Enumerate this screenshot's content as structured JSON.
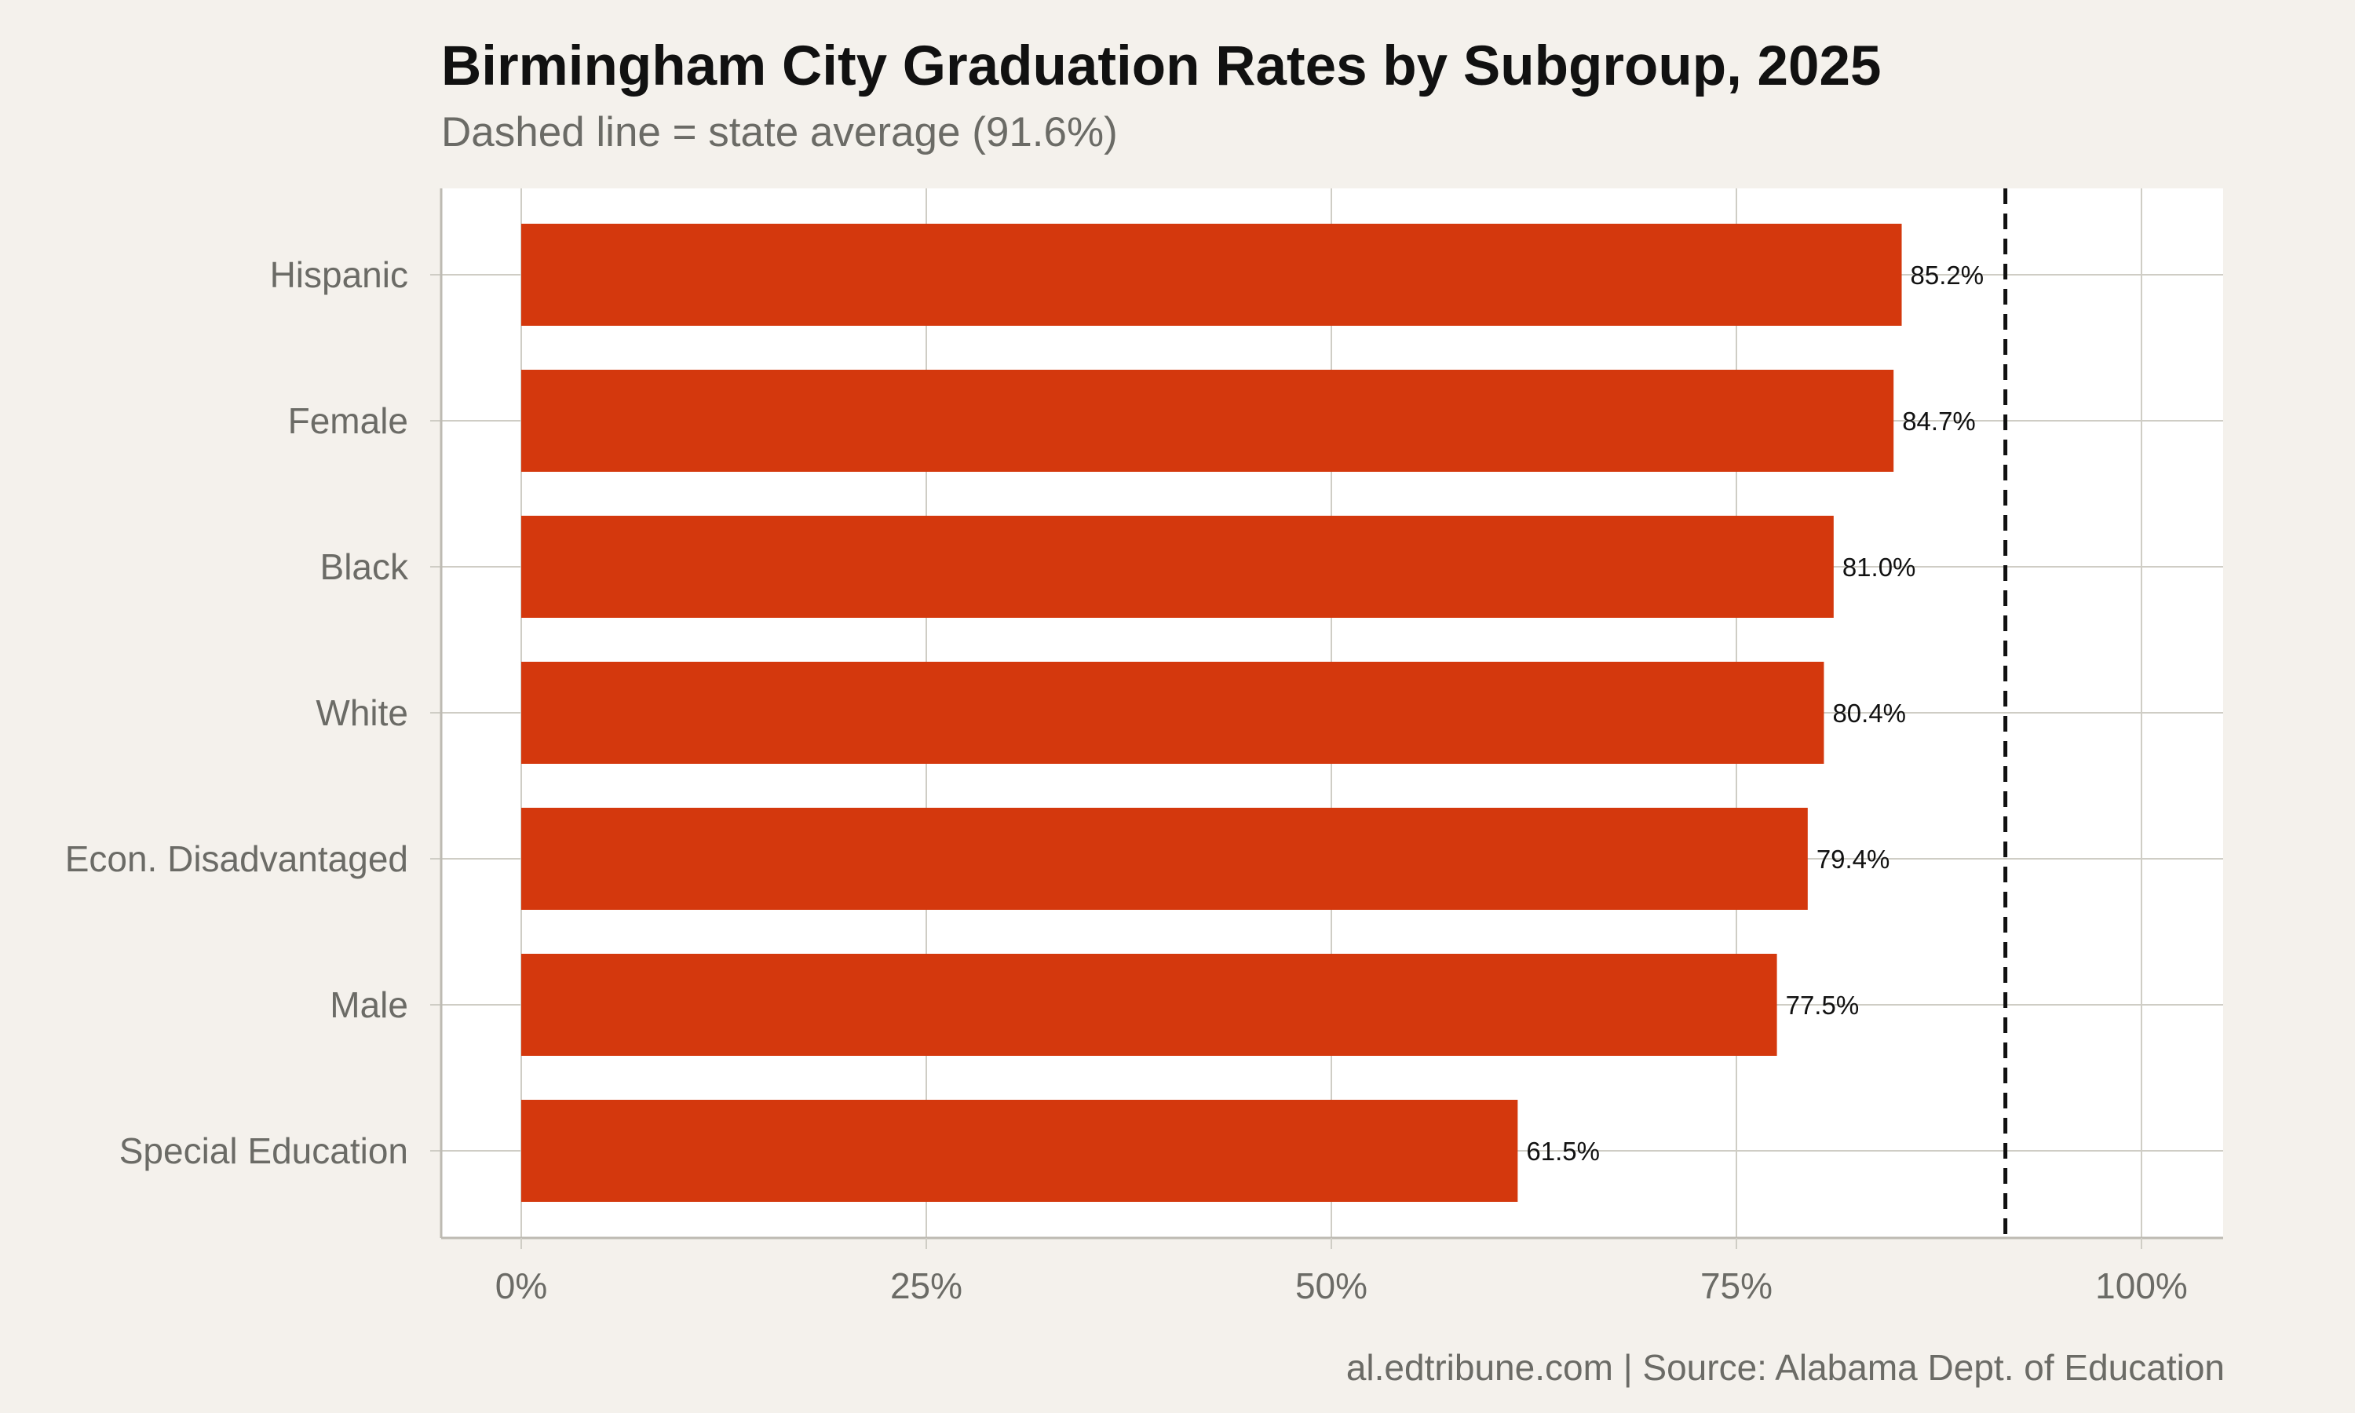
{
  "title": "Birmingham City Graduation Rates by Subgroup, 2025",
  "subtitle": "Dashed line = state average (91.6%)",
  "caption": "al.edtribune.com | Source: Alabama Dept. of Education",
  "chart_data": {
    "type": "bar",
    "orientation": "horizontal",
    "title": "Birmingham City Graduation Rates by Subgroup, 2025",
    "subtitle": "Dashed line = state average (91.6%)",
    "categories": [
      "Hispanic",
      "Female",
      "Black",
      "White",
      "Econ. Disadvantaged",
      "Male",
      "Special Education"
    ],
    "values": [
      85.2,
      84.7,
      81.0,
      80.4,
      79.4,
      77.5,
      61.5
    ],
    "value_labels": [
      "85.2%",
      "84.7%",
      "81.0%",
      "80.4%",
      "79.4%",
      "77.5%",
      "61.5%"
    ],
    "xlim": [
      -5,
      105
    ],
    "x_ticks": [
      0,
      25,
      50,
      75,
      100
    ],
    "x_tick_labels": [
      "0%",
      "25%",
      "50%",
      "75%",
      "100%"
    ],
    "reference_line": {
      "value": 91.6,
      "style": "dashed"
    },
    "grid": true,
    "colors": {
      "bar": "#d4380d",
      "reference_line": "#111111",
      "grid": "#cfcdc5",
      "panel": "#ffffff",
      "background": "#f4f1ec"
    }
  }
}
